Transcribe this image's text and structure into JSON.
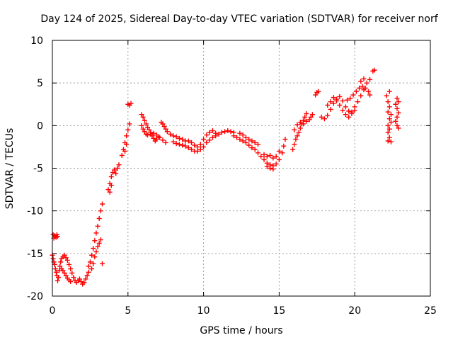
{
  "chart_data": {
    "type": "scatter",
    "title": "Day 124 of 2025, Sidereal Day-to-day VTEC variation (SDTVAR) for receiver norf",
    "xlabel": "GPS time / hours",
    "ylabel": "SDTVAR / TECUs",
    "xlim": [
      0,
      25
    ],
    "ylim": [
      -20,
      10
    ],
    "xticks": [
      "0",
      "5",
      "10",
      "15",
      "20",
      "25"
    ],
    "yticks": [
      "-20",
      "-15",
      "-10",
      "-5",
      "0",
      "5",
      "10"
    ],
    "grid": true,
    "marker": "+",
    "color": "#ff0000",
    "series": [
      {
        "values": [
          [
            0.05,
            -12.8
          ],
          [
            0.1,
            -13.2
          ],
          [
            0.15,
            -12.9
          ],
          [
            0.2,
            -13.0
          ],
          [
            0.25,
            -13.1
          ],
          [
            0.3,
            -12.8
          ],
          [
            0.35,
            -13.0
          ],
          [
            0.0,
            -15.2
          ],
          [
            0.05,
            -15.6
          ],
          [
            0.1,
            -16.0
          ],
          [
            0.15,
            -16.3
          ],
          [
            0.2,
            -16.8
          ],
          [
            0.25,
            -17.2
          ],
          [
            0.3,
            -17.6
          ],
          [
            0.35,
            -18.2
          ],
          [
            0.4,
            -17.8
          ],
          [
            0.45,
            -17.0
          ],
          [
            0.5,
            -16.5
          ],
          [
            0.55,
            -16.0
          ],
          [
            0.6,
            -15.6
          ],
          [
            0.7,
            -15.4
          ],
          [
            0.8,
            -15.2
          ],
          [
            0.9,
            -15.5
          ],
          [
            1.0,
            -15.8
          ],
          [
            1.1,
            -16.3
          ],
          [
            1.2,
            -16.8
          ],
          [
            1.3,
            -17.3
          ],
          [
            1.4,
            -17.8
          ],
          [
            1.5,
            -18.2
          ],
          [
            0.6,
            -16.8
          ],
          [
            0.7,
            -17.0
          ],
          [
            0.8,
            -17.3
          ],
          [
            0.9,
            -17.6
          ],
          [
            1.0,
            -17.9
          ],
          [
            1.1,
            -18.1
          ],
          [
            1.2,
            -18.3
          ],
          [
            1.6,
            -18.4
          ],
          [
            1.7,
            -18.2
          ],
          [
            1.8,
            -18.0
          ],
          [
            1.9,
            -18.3
          ],
          [
            2.0,
            -18.6
          ],
          [
            2.1,
            -18.4
          ],
          [
            2.2,
            -18.0
          ],
          [
            2.3,
            -17.6
          ],
          [
            2.4,
            -17.2
          ],
          [
            2.4,
            -16.5
          ],
          [
            2.5,
            -16.0
          ],
          [
            2.6,
            -15.2
          ],
          [
            2.7,
            -14.4
          ],
          [
            2.8,
            -13.5
          ],
          [
            2.9,
            -12.6
          ],
          [
            3.0,
            -11.8
          ],
          [
            3.1,
            -10.9
          ],
          [
            3.2,
            -10.0
          ],
          [
            3.3,
            -9.2
          ],
          [
            2.6,
            -16.8
          ],
          [
            2.7,
            -16.2
          ],
          [
            2.8,
            -15.4
          ],
          [
            2.9,
            -14.8
          ],
          [
            3.0,
            -14.2
          ],
          [
            3.1,
            -13.8
          ],
          [
            3.2,
            -13.4
          ],
          [
            3.3,
            -16.2
          ],
          [
            3.7,
            -7.5
          ],
          [
            3.8,
            -6.8
          ],
          [
            3.9,
            -6.0
          ],
          [
            4.0,
            -5.5
          ],
          [
            4.1,
            -5.2
          ],
          [
            4.2,
            -5.6
          ],
          [
            4.3,
            -5.0
          ],
          [
            4.4,
            -4.6
          ],
          [
            3.8,
            -7.8
          ],
          [
            3.9,
            -7.0
          ],
          [
            4.6,
            -3.5
          ],
          [
            4.7,
            -2.8
          ],
          [
            4.8,
            -2.0
          ],
          [
            4.9,
            -1.2
          ],
          [
            5.0,
            -0.5
          ],
          [
            5.1,
            0.2
          ],
          [
            4.8,
            -3.0
          ],
          [
            4.9,
            -2.2
          ],
          [
            5.0,
            2.5
          ],
          [
            5.1,
            2.4
          ],
          [
            5.2,
            2.6
          ],
          [
            5.9,
            1.3
          ],
          [
            6.0,
            1.0
          ],
          [
            6.1,
            0.6
          ],
          [
            6.2,
            0.2
          ],
          [
            6.3,
            -0.2
          ],
          [
            6.4,
            -0.5
          ],
          [
            6.5,
            -0.8
          ],
          [
            6.6,
            -1.2
          ],
          [
            6.7,
            -1.5
          ],
          [
            6.8,
            -1.8
          ],
          [
            6.9,
            -1.6
          ],
          [
            7.0,
            -1.3
          ],
          [
            5.9,
            0.0
          ],
          [
            6.0,
            -0.4
          ],
          [
            6.1,
            -0.7
          ],
          [
            6.2,
            -1.0
          ],
          [
            6.3,
            -1.1
          ],
          [
            6.5,
            -1.0
          ],
          [
            6.7,
            -0.9
          ],
          [
            6.9,
            -1.1
          ],
          [
            7.1,
            -1.4
          ],
          [
            7.3,
            -1.7
          ],
          [
            7.5,
            -2.0
          ],
          [
            7.2,
            0.4
          ],
          [
            7.3,
            0.2
          ],
          [
            7.4,
            -0.1
          ],
          [
            7.5,
            -0.4
          ],
          [
            7.6,
            -0.7
          ],
          [
            7.8,
            -1.0
          ],
          [
            8.0,
            -1.2
          ],
          [
            8.2,
            -1.3
          ],
          [
            8.4,
            -1.5
          ],
          [
            8.6,
            -1.6
          ],
          [
            8.8,
            -1.8
          ],
          [
            8.0,
            -1.9
          ],
          [
            8.2,
            -2.1
          ],
          [
            8.4,
            -2.2
          ],
          [
            8.6,
            -2.3
          ],
          [
            8.8,
            -2.4
          ],
          [
            9.0,
            -2.6
          ],
          [
            9.2,
            -2.8
          ],
          [
            9.4,
            -3.0
          ],
          [
            9.6,
            -3.0
          ],
          [
            9.8,
            -2.8
          ],
          [
            10.0,
            -2.5
          ],
          [
            9.0,
            -1.8
          ],
          [
            9.2,
            -2.0
          ],
          [
            9.4,
            -2.3
          ],
          [
            9.6,
            -2.5
          ],
          [
            9.8,
            -2.2
          ],
          [
            10.0,
            -1.6
          ],
          [
            10.2,
            -1.1
          ],
          [
            10.4,
            -0.8
          ],
          [
            10.6,
            -0.6
          ],
          [
            10.8,
            -0.9
          ],
          [
            10.2,
            -2.0
          ],
          [
            10.4,
            -1.7
          ],
          [
            10.6,
            -1.4
          ],
          [
            10.8,
            -1.2
          ],
          [
            11.0,
            -1.0
          ],
          [
            11.2,
            -0.8
          ],
          [
            11.4,
            -0.7
          ],
          [
            11.6,
            -0.6
          ],
          [
            11.8,
            -0.7
          ],
          [
            12.0,
            -0.8
          ],
          [
            12.0,
            -1.2
          ],
          [
            12.2,
            -1.4
          ],
          [
            12.4,
            -1.6
          ],
          [
            12.6,
            -1.8
          ],
          [
            12.8,
            -2.0
          ],
          [
            13.0,
            -2.3
          ],
          [
            13.2,
            -2.6
          ],
          [
            13.4,
            -2.8
          ],
          [
            13.6,
            -3.2
          ],
          [
            13.8,
            -3.6
          ],
          [
            12.4,
            -0.9
          ],
          [
            12.6,
            -1.1
          ],
          [
            12.8,
            -1.4
          ],
          [
            13.0,
            -1.6
          ],
          [
            13.2,
            -1.8
          ],
          [
            13.4,
            -2.0
          ],
          [
            13.6,
            -2.2
          ],
          [
            14.0,
            -4.0
          ],
          [
            14.2,
            -4.4
          ],
          [
            14.4,
            -4.6
          ],
          [
            14.6,
            -4.7
          ],
          [
            14.8,
            -4.5
          ],
          [
            15.0,
            -4.0
          ],
          [
            15.2,
            -3.2
          ],
          [
            15.3,
            -2.4
          ],
          [
            15.4,
            -1.6
          ],
          [
            14.0,
            -3.4
          ],
          [
            14.2,
            -3.6
          ],
          [
            14.4,
            -3.5
          ],
          [
            14.6,
            -3.8
          ],
          [
            14.8,
            -3.6
          ],
          [
            15.0,
            -3.0
          ],
          [
            14.2,
            -4.8
          ],
          [
            14.4,
            -5.0
          ],
          [
            14.6,
            -5.1
          ],
          [
            15.9,
            -2.8
          ],
          [
            16.0,
            -2.2
          ],
          [
            16.1,
            -1.6
          ],
          [
            16.2,
            -1.2
          ],
          [
            16.3,
            -0.8
          ],
          [
            16.4,
            -0.3
          ],
          [
            16.5,
            0.2
          ],
          [
            16.6,
            0.6
          ],
          [
            16.7,
            1.0
          ],
          [
            16.8,
            1.4
          ],
          [
            16.0,
            -0.5
          ],
          [
            16.2,
            0.1
          ],
          [
            16.4,
            0.4
          ],
          [
            16.6,
            0.2
          ],
          [
            16.8,
            0.5
          ],
          [
            17.0,
            0.7
          ],
          [
            17.1,
            1.0
          ],
          [
            17.2,
            1.3
          ],
          [
            17.4,
            3.6
          ],
          [
            17.5,
            3.9
          ],
          [
            17.6,
            4.0
          ],
          [
            17.8,
            1.0
          ],
          [
            18.0,
            0.8
          ],
          [
            18.2,
            1.2
          ],
          [
            18.4,
            1.9
          ],
          [
            18.6,
            2.6
          ],
          [
            18.8,
            2.9
          ],
          [
            19.0,
            2.4
          ],
          [
            19.2,
            1.8
          ],
          [
            19.4,
            1.3
          ],
          [
            19.6,
            1.0
          ],
          [
            18.2,
            2.4
          ],
          [
            18.4,
            2.8
          ],
          [
            18.6,
            3.3
          ],
          [
            18.8,
            3.1
          ],
          [
            19.0,
            3.4
          ],
          [
            19.2,
            2.9
          ],
          [
            19.4,
            2.2
          ],
          [
            19.6,
            1.7
          ],
          [
            19.8,
            1.4
          ],
          [
            20.0,
            1.8
          ],
          [
            19.5,
            3.0
          ],
          [
            19.7,
            3.2
          ],
          [
            19.9,
            3.6
          ],
          [
            20.1,
            4.0
          ],
          [
            20.3,
            4.4
          ],
          [
            20.5,
            4.6
          ],
          [
            20.7,
            4.4
          ],
          [
            20.9,
            4.0
          ],
          [
            21.0,
            3.6
          ],
          [
            19.8,
            1.6
          ],
          [
            20.0,
            2.2
          ],
          [
            20.2,
            2.8
          ],
          [
            20.4,
            3.5
          ],
          [
            20.6,
            4.2
          ],
          [
            20.8,
            5.0
          ],
          [
            21.0,
            5.4
          ],
          [
            20.6,
            5.5
          ],
          [
            20.4,
            5.2
          ],
          [
            21.2,
            6.4
          ],
          [
            21.3,
            6.5
          ],
          [
            22.1,
            3.5
          ],
          [
            22.2,
            2.8
          ],
          [
            22.2,
            1.6
          ],
          [
            22.3,
            0.8
          ],
          [
            22.2,
            0.0
          ],
          [
            22.3,
            -0.4
          ],
          [
            22.2,
            -0.8
          ],
          [
            22.3,
            -1.4
          ],
          [
            22.2,
            -1.8
          ],
          [
            22.4,
            -1.9
          ],
          [
            22.3,
            2.2
          ],
          [
            22.4,
            1.3
          ],
          [
            22.4,
            0.4
          ],
          [
            22.3,
            4.0
          ],
          [
            22.8,
            3.2
          ],
          [
            22.9,
            2.8
          ],
          [
            22.8,
            2.0
          ],
          [
            22.9,
            1.5
          ],
          [
            22.8,
            1.0
          ],
          [
            22.7,
            0.5
          ],
          [
            22.8,
            0.0
          ],
          [
            22.9,
            -0.3
          ],
          [
            22.7,
            2.5
          ]
        ]
      }
    ]
  }
}
